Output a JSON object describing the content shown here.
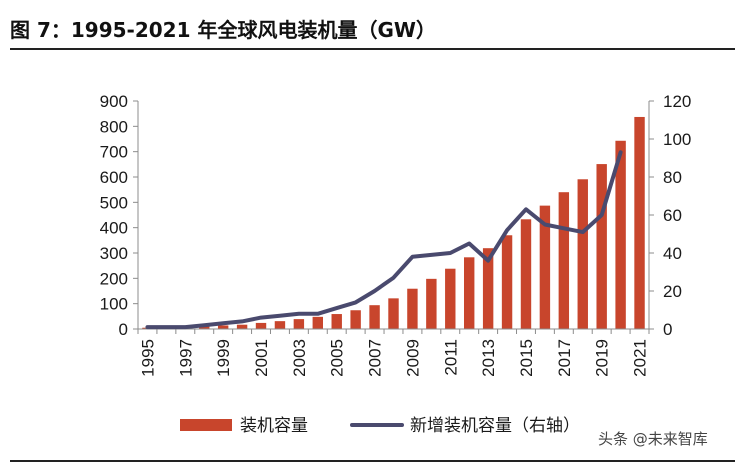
{
  "title": "图 7：1995-2021 年全球风电装机量（GW）",
  "watermark": "头条 @未来智库",
  "chart_data": {
    "type": "bar",
    "categories": [
      "1995",
      "1996",
      "1997",
      "1998",
      "1999",
      "2000",
      "2001",
      "2002",
      "2003",
      "2004",
      "2005",
      "2006",
      "2007",
      "2008",
      "2009",
      "2010",
      "2011",
      "2012",
      "2013",
      "2014",
      "2015",
      "2016",
      "2017",
      "2018",
      "2019",
      "2020",
      "2021"
    ],
    "x_tick_labels": [
      "1995",
      "1997",
      "1999",
      "2001",
      "2003",
      "2005",
      "2007",
      "2009",
      "2011",
      "2013",
      "2015",
      "2017",
      "2019",
      "2021"
    ],
    "series": [
      {
        "name": "装机容量",
        "type": "bar",
        "axis": "left",
        "color": "#c8452c",
        "values": [
          5,
          6,
          8,
          10,
          14,
          17,
          24,
          31,
          39,
          48,
          59,
          74,
          94,
          121,
          159,
          198,
          238,
          283,
          319,
          370,
          433,
          487,
          540,
          591,
          651,
          743,
          837
        ]
      },
      {
        "name": "新增装机容量（右轴）",
        "type": "line",
        "axis": "right",
        "color": "#4a4a6e",
        "values": [
          1,
          1,
          1,
          2,
          3,
          4,
          6,
          7,
          8,
          8,
          11,
          14,
          20,
          27,
          38,
          39,
          40,
          45,
          36,
          52,
          63,
          55,
          53,
          51,
          60,
          93,
          null
        ]
      }
    ],
    "y_left": {
      "ylim": [
        0,
        900
      ],
      "ticks": [
        0,
        100,
        200,
        300,
        400,
        500,
        600,
        700,
        800,
        900
      ]
    },
    "y_right": {
      "ylim": [
        0,
        120
      ],
      "ticks": [
        0,
        20,
        40,
        60,
        80,
        100,
        120
      ]
    },
    "grid": false,
    "legend_position": "bottom"
  }
}
